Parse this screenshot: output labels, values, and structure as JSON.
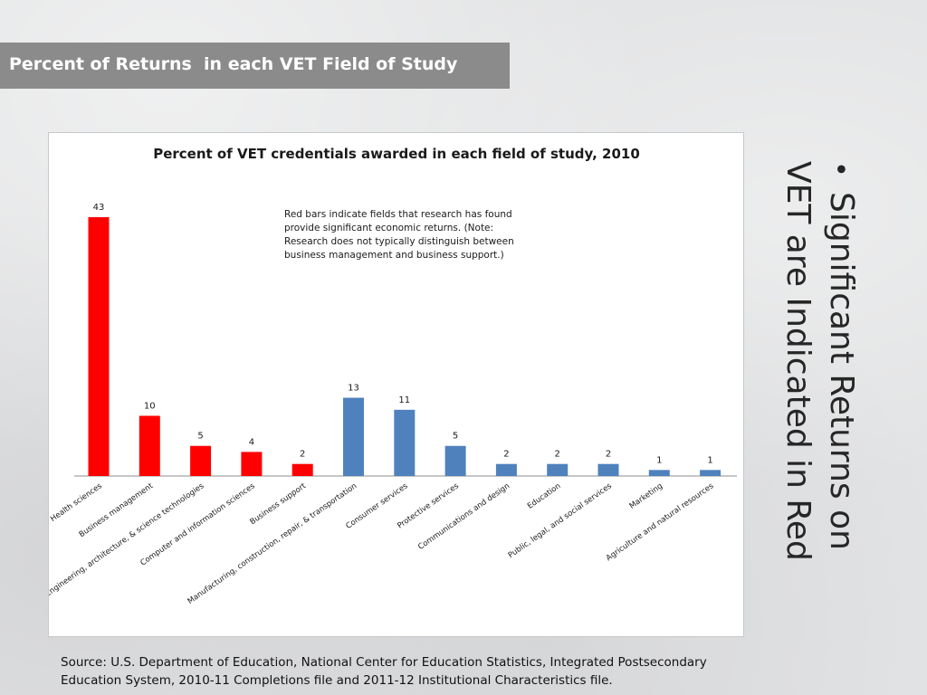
{
  "slide": {
    "title": "Percent of Returns  in each VET Field of Study",
    "bullet_symbol": "•",
    "bullet_line1": "Significant Returns on",
    "bullet_line2": "VET are Indicated in Red",
    "source_line1": "Source: U.S. Department of Education, National Center for Education Statistics, Integrated Postsecondary",
    "source_line2": "Education System, 2010-11 Completions file and 2011-12 Institutional Characteristics file."
  },
  "chart_data": {
    "type": "bar",
    "title": "Percent of VET credentials awarded in each field of study, 2010",
    "xlabel": "",
    "ylabel": "",
    "ylim": [
      0,
      43
    ],
    "grid": false,
    "legend": "none",
    "annotation": [
      "Red bars indicate fields that research has found",
      "provide significant economic returns. (Note:",
      "Research does not typically distinguish between",
      "business management and business support.)"
    ],
    "categories": [
      "Health sciences",
      "Business management",
      "Engineering, architecture, & science technologies",
      "Computer and information sciences",
      "Business support",
      "Manufacturing, construction, repair, & transportation",
      "Consumer services",
      "Protective services",
      "Communications and design",
      "Education",
      "Public, legal, and social services",
      "Marketing",
      "Agriculture and natural resources"
    ],
    "values": [
      43,
      10,
      5,
      4,
      2,
      13,
      11,
      5,
      2,
      2,
      2,
      1,
      1
    ],
    "value_labels": [
      "43",
      "10",
      "5",
      "4",
      "2",
      "13",
      "11",
      "5",
      "2",
      "2",
      "2",
      "1",
      "1"
    ],
    "significant": [
      true,
      true,
      true,
      true,
      true,
      false,
      false,
      false,
      false,
      false,
      false,
      false,
      false
    ],
    "colors": {
      "significant": "#ff0000",
      "other": "#4f81bd",
      "axis": "#8c8c8c",
      "text": "#1a1a1a"
    }
  }
}
